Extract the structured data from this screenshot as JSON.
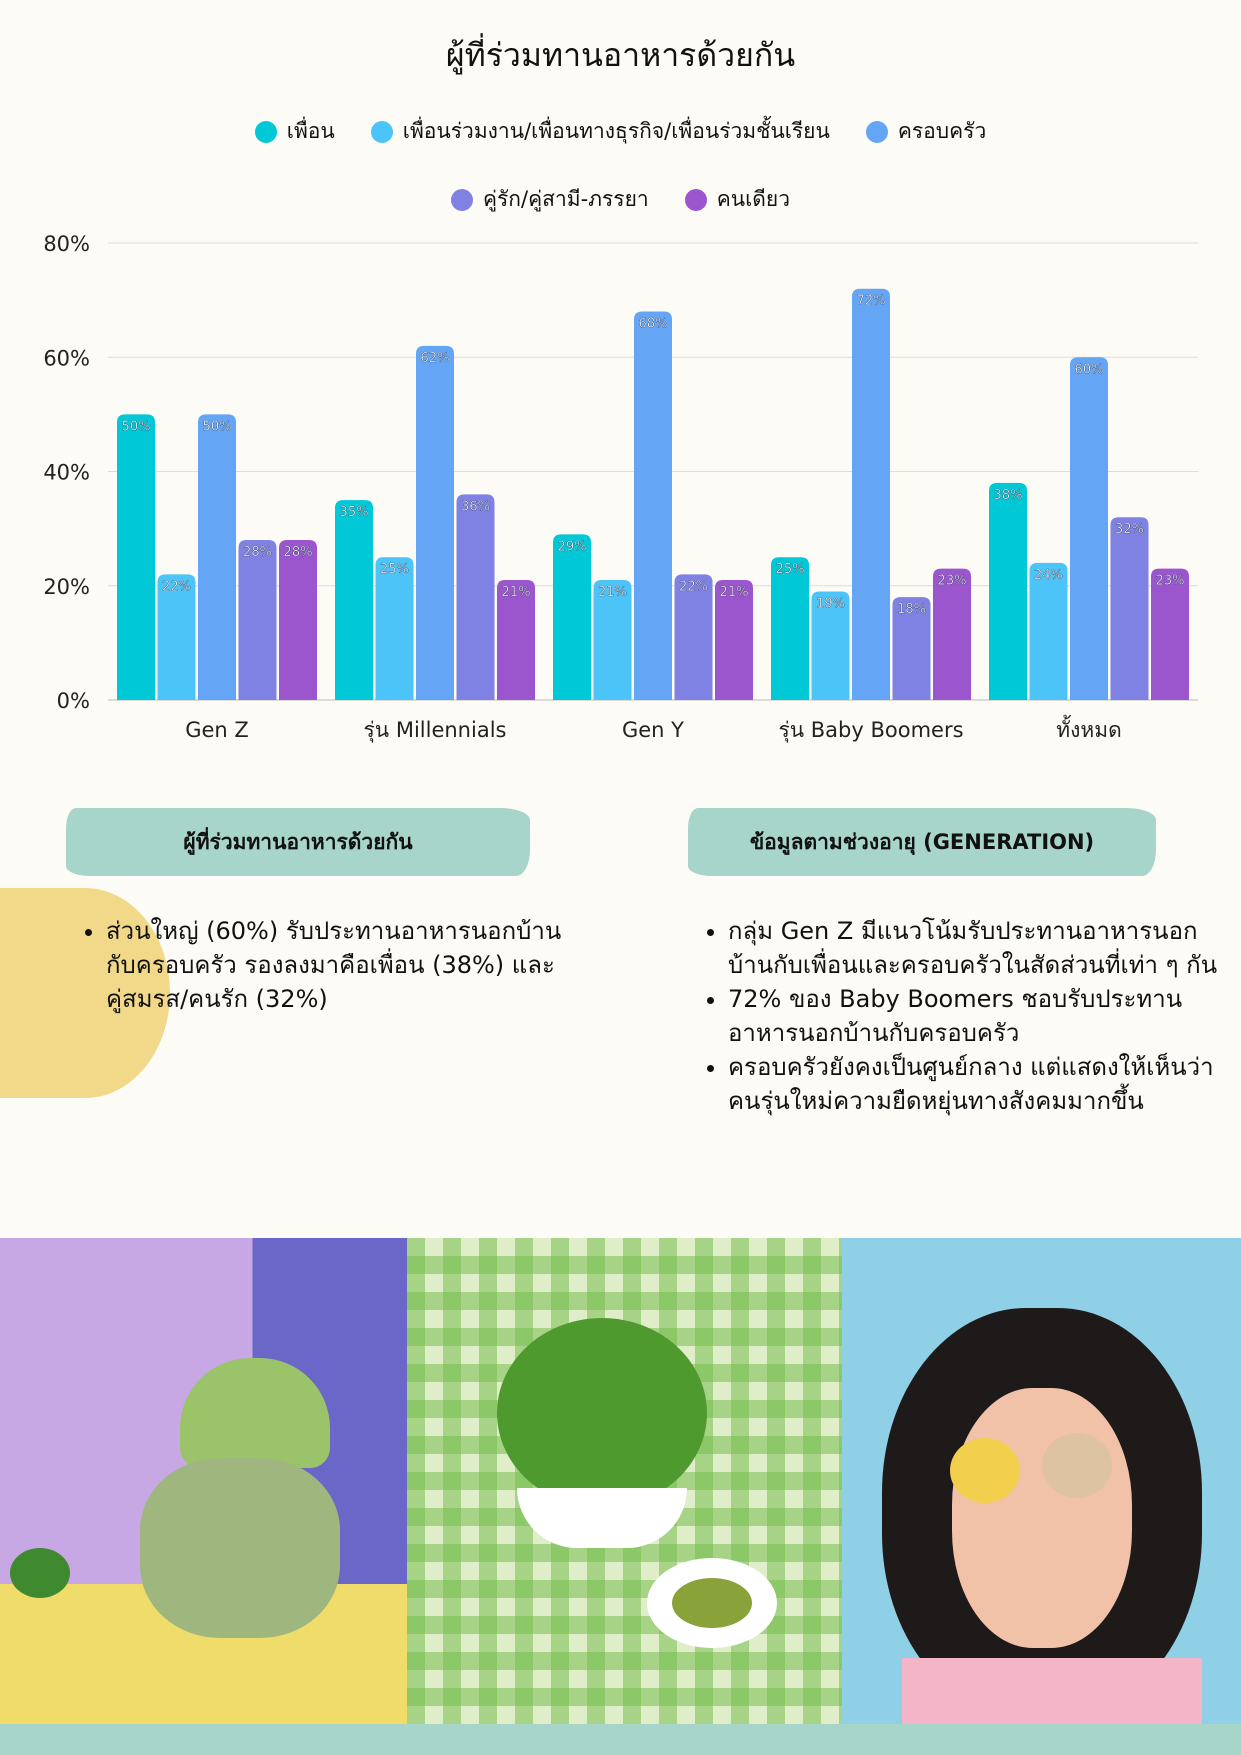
{
  "chart_data": {
    "type": "bar",
    "title": "ผู้ที่ร่วมทานอาหารด้วยกัน",
    "categories": [
      "Gen Z",
      "รุ่น Millennials",
      "Gen Y",
      "รุ่น Baby Boomers",
      "ทั้งหมด"
    ],
    "series": [
      {
        "name": "เพื่อน",
        "color": "#00c8d7",
        "values": [
          50,
          35,
          29,
          25,
          38
        ]
      },
      {
        "name": "เพื่อนร่วมงาน/เพื่อนทางธุรกิจ/เพื่อนร่วมชั้นเรียน",
        "color": "#4cc4f7",
        "values": [
          22,
          25,
          21,
          19,
          24
        ]
      },
      {
        "name": "ครอบครัว",
        "color": "#64a6f5",
        "values": [
          50,
          62,
          68,
          72,
          60
        ]
      },
      {
        "name": "คู่รัก/คู่สามี-ภรรยา",
        "color": "#7f82e2",
        "values": [
          28,
          36,
          22,
          18,
          32
        ]
      },
      {
        "name": "คนเดียว",
        "color": "#9b56cd",
        "values": [
          28,
          21,
          21,
          23,
          23
        ]
      }
    ],
    "yticks": [
      "0%",
      "20%",
      "40%",
      "60%",
      "80%"
    ],
    "ylim": [
      0,
      80
    ],
    "grid": true,
    "legend": "top-center"
  },
  "left_box": {
    "heading": "ผู้ที่ร่วมทานอาหารด้วยกัน",
    "bullets": [
      "ส่วนใหญ่ (60%) รับประทานอาหารนอกบ้านกับครอบครัว รองลงมาคือเพื่อน (38%) และคู่สมรส/คนรัก (32%)"
    ]
  },
  "right_box": {
    "heading": "ข้อมูลตามช่วงอายุ (GENERATION)",
    "bullets": [
      "กลุ่ม Gen Z มีแนวโน้มรับประทานอาหารนอกบ้านกับเพื่อนและครอบครัวในสัดส่วนที่เท่า ๆ กัน",
      "72% ของ Baby Boomers ชอบรับประทานอาหารนอกบ้านกับครอบครัว",
      "ครอบครัวยังคงเป็นศูนย์กลาง แต่แสดงให้เห็นว่าคนรุ่นใหม่ความยืดหยุ่นทางสังคมมากขึ้น"
    ]
  }
}
